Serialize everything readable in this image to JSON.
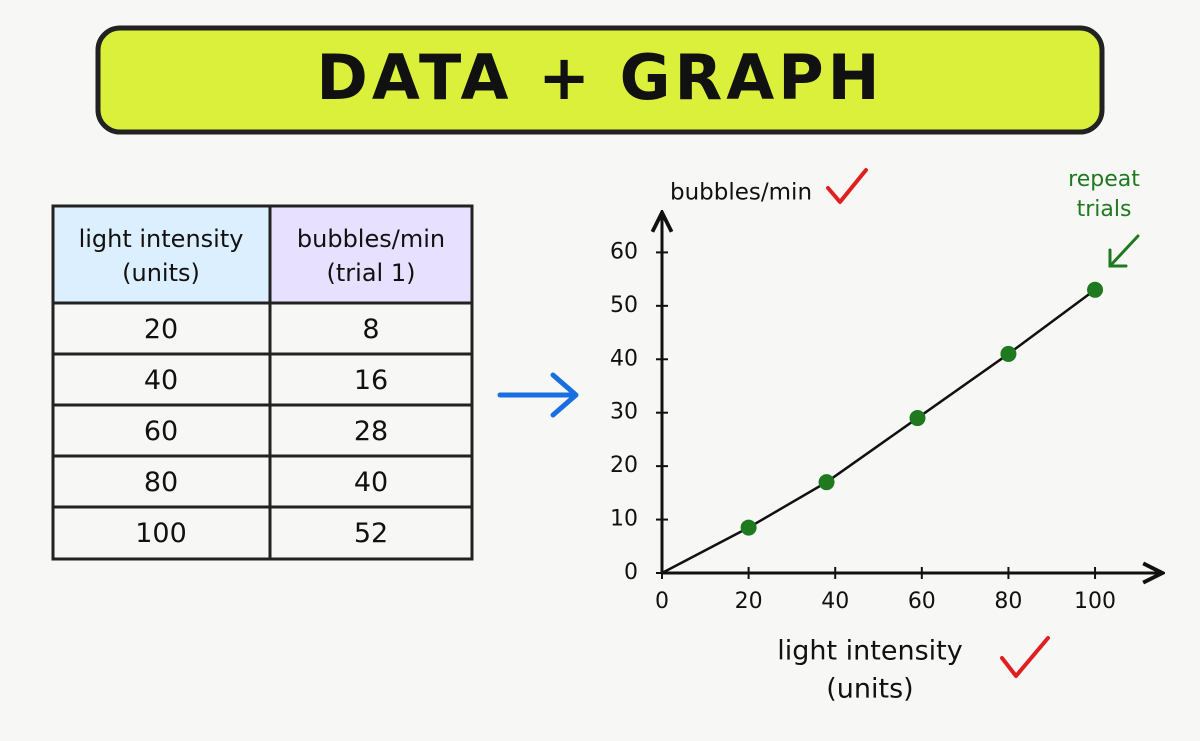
{
  "header": {
    "title": "DATA + GRAPH"
  },
  "table": {
    "header": [
      [
        "light intensity",
        "(units)"
      ],
      [
        "bubbles/min",
        "(trial 1)"
      ]
    ],
    "rows": [
      [
        20,
        8
      ],
      [
        40,
        16
      ],
      [
        60,
        28
      ],
      [
        80,
        40
      ],
      [
        100,
        52
      ]
    ]
  },
  "chart_data": {
    "type": "scatter",
    "x_label": [
      "light intensity",
      "(units)"
    ],
    "y_label": "bubbles/min",
    "annotation": [
      "repeat",
      "trials"
    ],
    "series": [
      {
        "x": [
          20,
          38,
          59,
          80,
          100
        ],
        "values": [
          8.5,
          17,
          29,
          41,
          53
        ],
        "color": "#1f7a1f"
      }
    ],
    "line_color": "#111111",
    "xlim": [
      0,
      115
    ],
    "ylim": [
      0,
      67
    ],
    "xticks": [
      0,
      20,
      40,
      60,
      80,
      100
    ],
    "yticks": [
      0,
      10,
      20,
      30,
      40,
      50,
      60
    ]
  }
}
